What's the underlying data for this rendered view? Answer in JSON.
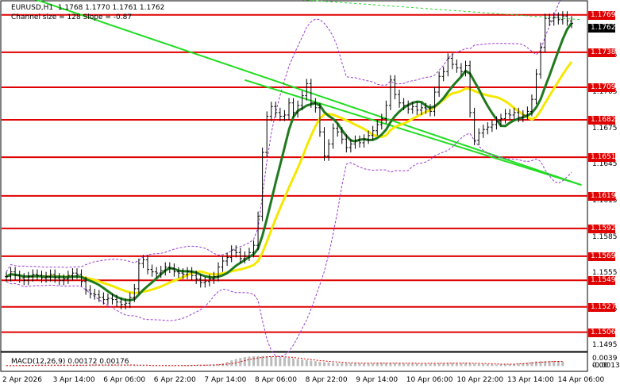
{
  "header": {
    "symbol_info": "EURUSD,H1  1.1768 1.1770 1.1761 1.1762",
    "channel_info": "Channel size = 128 Slope = -0.87"
  },
  "price_axis": {
    "ticks": [
      "1.1735",
      "1.1705",
      "1.1675",
      "1.1645",
      "1.1615",
      "1.1585",
      "1.1555",
      "1.1525",
      "1.1495"
    ],
    "tagged_levels": [
      "1.1769",
      "1.1762",
      "1.1738",
      "1.1709",
      "1.1682",
      "1.1651",
      "1.1619",
      "1.1592",
      "1.1569",
      "1.1549",
      "1.1527",
      "1.1506"
    ]
  },
  "macd": {
    "label": "MACD(12,26,9) 0.00172 0.00176",
    "ticks": [
      "0.0039",
      "0.00",
      "-0.00135"
    ]
  },
  "time_axis": {
    "labels": [
      "2 Apr 2026",
      "3 Apr 14:00",
      "6 Apr 06:00",
      "6 Apr 22:00",
      "7 Apr 14:00",
      "8 Apr 06:00",
      "8 Apr 22:00",
      "9 Apr 14:00",
      "10 Apr 06:00",
      "10 Apr 22:00",
      "13 Apr 14:00",
      "14 Apr 06:00"
    ]
  },
  "colors": {
    "level_line": "#e00000",
    "channel": "#22dd22",
    "ma_fast": "#1f7a1f",
    "ma_slow": "#f5e800",
    "bands": "#9a3ccf",
    "histogram": "#bbbbbb",
    "signal": "#e00000"
  },
  "chart_data": {
    "type": "line",
    "title": "EURUSD,H1",
    "ohlc_last": {
      "open": 1.1768,
      "high": 1.177,
      "low": 1.1761,
      "close": 1.1762
    },
    "horizontal_levels": [
      1.1769,
      1.1738,
      1.1709,
      1.1682,
      1.1651,
      1.1619,
      1.1592,
      1.1569,
      1.1549,
      1.1527,
      1.1506
    ],
    "current_price": 1.1762,
    "ylim": [
      1.149,
      1.178
    ],
    "close_series": [
      1.1552,
      1.1556,
      1.1553,
      1.1551,
      1.1549,
      1.1552,
      1.1554,
      1.1553,
      1.1551,
      1.1552,
      1.1554,
      1.1551,
      1.1549,
      1.155,
      1.1553,
      1.1555,
      1.1554,
      1.1548,
      1.1541,
      1.1538,
      1.1537,
      1.1535,
      1.1533,
      1.1534,
      1.1533,
      1.1531,
      1.1529,
      1.153,
      1.1535,
      1.1542,
      1.1563,
      1.1566,
      1.1558,
      1.1556,
      1.1555,
      1.1557,
      1.156,
      1.1559,
      1.1556,
      1.1555,
      1.1554,
      1.1556,
      1.1553,
      1.155,
      1.1547,
      1.1548,
      1.155,
      1.1552,
      1.156,
      1.1565,
      1.1568,
      1.1574,
      1.1572,
      1.1567,
      1.1569,
      1.1572,
      1.1578,
      1.1602,
      1.1655,
      1.1685,
      1.1693,
      1.1688,
      1.1685,
      1.1686,
      1.1696,
      1.1688,
      1.1694,
      1.1702,
      1.1712,
      1.1696,
      1.1692,
      1.1672,
      1.1652,
      1.1662,
      1.1675,
      1.1672,
      1.1666,
      1.1659,
      1.1662,
      1.1665,
      1.1663,
      1.1666,
      1.1669,
      1.1673,
      1.1678,
      1.1683,
      1.1694,
      1.1715,
      1.1703,
      1.1696,
      1.1694,
      1.1691,
      1.1693,
      1.169,
      1.1692,
      1.1691,
      1.1689,
      1.1705,
      1.1718,
      1.1722,
      1.1733,
      1.1728,
      1.1725,
      1.1722,
      1.1727,
      1.1688,
      1.1665,
      1.1671,
      1.1674,
      1.1676,
      1.1678,
      1.1681,
      1.1683,
      1.1687,
      1.1686,
      1.1688,
      1.1684,
      1.1686,
      1.1689,
      1.1699,
      1.172,
      1.1742,
      1.1766,
      1.1764,
      1.1767,
      1.1765,
      1.1768,
      1.1764,
      1.1762
    ],
    "series": [
      {
        "name": "MACD(12,26,9)",
        "values": [
          0.0002,
          0.0002,
          0.0002,
          0.0002,
          0.0003,
          0.0003,
          0.0003,
          0.0003,
          0.0003,
          0.0002,
          0.0002,
          0.0002,
          0.0003,
          0.0003,
          0.0003,
          0.0003,
          0.0003,
          0.0004,
          0.0004,
          0.0005,
          0.0005,
          0.0004,
          0.0004,
          0.0004,
          0.0004,
          0.0003,
          0.0003,
          0.0003,
          0.0003,
          0.0003,
          0.0002,
          0.0002,
          0.0001,
          0.0001,
          0.0001,
          0.0001,
          0.0001,
          0.0001,
          0.0002,
          0.0002,
          0.0003,
          0.0003,
          0.0004,
          0.0004,
          0.0004,
          0.0005,
          0.0005,
          0.0006,
          0.0007,
          0.001,
          0.0015,
          0.0021,
          0.0026,
          0.003,
          0.0033,
          0.0035,
          0.0036,
          0.0037,
          0.0037,
          0.0036,
          0.0035,
          0.0034,
          0.0033,
          0.0032,
          0.003,
          0.0028,
          0.0026,
          0.0024,
          0.0022,
          0.002,
          0.0018,
          0.0016,
          0.0014,
          0.0013,
          0.0012,
          0.0011,
          0.0011,
          0.0011,
          0.0011,
          0.0011,
          0.001,
          0.001,
          0.001,
          0.001,
          0.0011,
          0.0012,
          0.0012,
          0.0012,
          0.0011,
          0.0011,
          0.001,
          0.001,
          0.001,
          0.001,
          0.0009,
          0.0009,
          0.0009,
          0.001,
          0.0011,
          0.0011,
          0.0012,
          0.0012,
          0.0011,
          0.0011,
          0.0011,
          0.001,
          0.0009,
          0.0008,
          0.0008,
          0.0007,
          0.0007,
          0.0006,
          0.0006,
          0.0006,
          0.0007,
          0.0008,
          0.0009,
          0.0011,
          0.0013,
          0.0015,
          0.0017,
          0.0018,
          0.0018,
          0.0019,
          0.0019,
          0.0018,
          0.0017
        ]
      },
      {
        "name": "signal",
        "values": [
          0.0002,
          0.0002,
          0.0002,
          0.0002,
          0.0002,
          0.0002,
          0.0002,
          0.0003,
          0.0003,
          0.0003,
          0.0003,
          0.0003,
          0.0003,
          0.0003,
          0.0003,
          0.0003,
          0.0003,
          0.0003,
          0.0003,
          0.0004,
          0.0004,
          0.0004,
          0.0004,
          0.0004,
          0.0004,
          0.0004,
          0.0004,
          0.0004,
          0.0004,
          0.0004,
          0.0003,
          0.0003,
          0.0003,
          0.0002,
          0.0002,
          0.0002,
          0.0002,
          0.0002,
          0.0002,
          0.0002,
          0.0002,
          0.0002,
          0.0002,
          0.0003,
          0.0003,
          0.0003,
          0.0004,
          0.0004,
          0.0005,
          0.0006,
          0.0007,
          0.0009,
          0.0012,
          0.0016,
          0.002,
          0.0024,
          0.0027,
          0.003,
          0.0032,
          0.0034,
          0.0035,
          0.0035,
          0.0035,
          0.0034,
          0.0033,
          0.0032,
          0.003,
          0.0028,
          0.0026,
          0.0024,
          0.0022,
          0.002,
          0.0019,
          0.0017,
          0.0016,
          0.0015,
          0.0014,
          0.0013,
          0.0012,
          0.0012,
          0.0011,
          0.0011,
          0.0011,
          0.0011,
          0.0011,
          0.0011,
          0.0011,
          0.0011,
          0.0011,
          0.0011,
          0.0011,
          0.0011,
          0.0011,
          0.001,
          0.001,
          0.001,
          0.001,
          0.001,
          0.001,
          0.001,
          0.0011,
          0.0011,
          0.0011,
          0.0011,
          0.0011,
          0.0011,
          0.001,
          0.001,
          0.0009,
          0.0009,
          0.0008,
          0.0008,
          0.0007,
          0.0007,
          0.0007,
          0.0007,
          0.0008,
          0.0009,
          0.001,
          0.0011,
          0.0013,
          0.0014,
          0.0015,
          0.0016,
          0.0017,
          0.0017,
          0.0017
        ]
      }
    ],
    "macd_ylim": [
      -0.00135,
      0.0039
    ],
    "channel_lines": [
      {
        "from": [
          0,
          1.179
        ],
        "to": [
          127,
          1.1628
        ]
      },
      {
        "from": [
          54,
          1.1715
        ],
        "to": [
          127,
          1.1628
        ]
      },
      {
        "from": [
          54,
          1.1785
        ],
        "to": [
          127,
          1.1765
        ],
        "style": "dashed"
      }
    ]
  }
}
